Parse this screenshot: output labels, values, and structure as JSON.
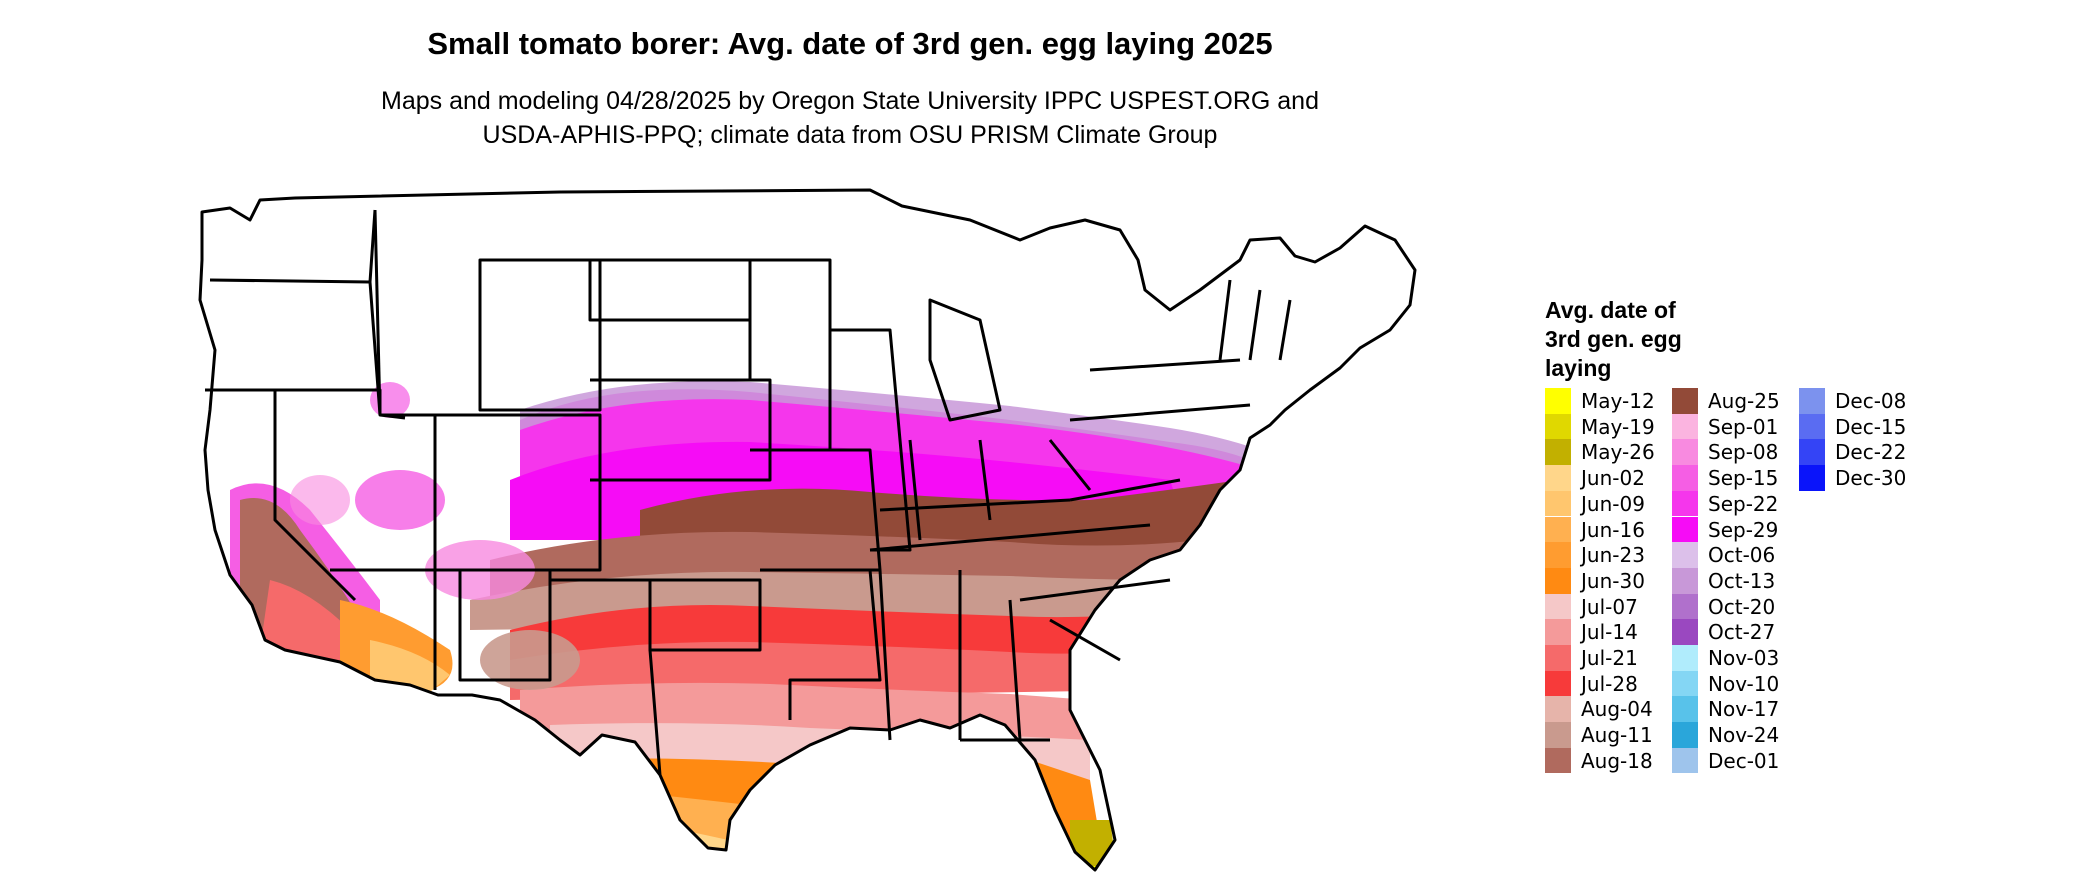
{
  "title": "Small tomato borer: Avg. date of 3rd gen. egg laying 2025",
  "subtitle": {
    "line1": "Maps and modeling 04/28/2025 by Oregon State University IPPC USPEST.ORG and",
    "line2": "USDA-APHIS-PPQ; climate data from OSU PRISM Climate Group"
  },
  "legend": {
    "title_lines": [
      "Avg. date of",
      "3rd gen. egg",
      "laying"
    ],
    "items": [
      {
        "label": "May-12",
        "color": "#ffff00"
      },
      {
        "label": "May-19",
        "color": "#e0d800"
      },
      {
        "label": "May-26",
        "color": "#c2b000"
      },
      {
        "label": "Jun-02",
        "color": "#ffd68a"
      },
      {
        "label": "Jun-09",
        "color": "#ffc66e"
      },
      {
        "label": "Jun-16",
        "color": "#ffb050"
      },
      {
        "label": "Jun-23",
        "color": "#ff9c30"
      },
      {
        "label": "Jun-30",
        "color": "#ff8a12"
      },
      {
        "label": "Jul-07",
        "color": "#f5c8c8"
      },
      {
        "label": "Jul-14",
        "color": "#f49a9a"
      },
      {
        "label": "Jul-21",
        "color": "#f56a6a"
      },
      {
        "label": "Jul-28",
        "color": "#f73a3a"
      },
      {
        "label": "Aug-04",
        "color": "#e6b4aa"
      },
      {
        "label": "Aug-11",
        "color": "#c99a8e"
      },
      {
        "label": "Aug-18",
        "color": "#b06a5e"
      },
      {
        "label": "Aug-25",
        "color": "#924a38"
      },
      {
        "label": "Sep-01",
        "color": "#fbb4e0"
      },
      {
        "label": "Sep-08",
        "color": "#f88ae0"
      },
      {
        "label": "Sep-15",
        "color": "#f55ee4"
      },
      {
        "label": "Sep-22",
        "color": "#f536ec"
      },
      {
        "label": "Sep-29",
        "color": "#f60cf6"
      },
      {
        "label": "Oct-06",
        "color": "#dcc0ea"
      },
      {
        "label": "Oct-13",
        "color": "#c898d8"
      },
      {
        "label": "Oct-20",
        "color": "#b070cc"
      },
      {
        "label": "Oct-27",
        "color": "#9a48c0"
      },
      {
        "label": "Nov-03",
        "color": "#b0ecfc"
      },
      {
        "label": "Nov-10",
        "color": "#84d6f4"
      },
      {
        "label": "Nov-17",
        "color": "#58c2ea"
      },
      {
        "label": "Nov-24",
        "color": "#2aa6da"
      },
      {
        "label": "Dec-01",
        "color": "#9ec4ec"
      },
      {
        "label": "Dec-08",
        "color": "#7c92ee"
      },
      {
        "label": "Dec-15",
        "color": "#5a6cf2"
      },
      {
        "label": "Dec-22",
        "color": "#3444f6"
      },
      {
        "label": "Dec-30",
        "color": "#0a14fa"
      }
    ]
  }
}
